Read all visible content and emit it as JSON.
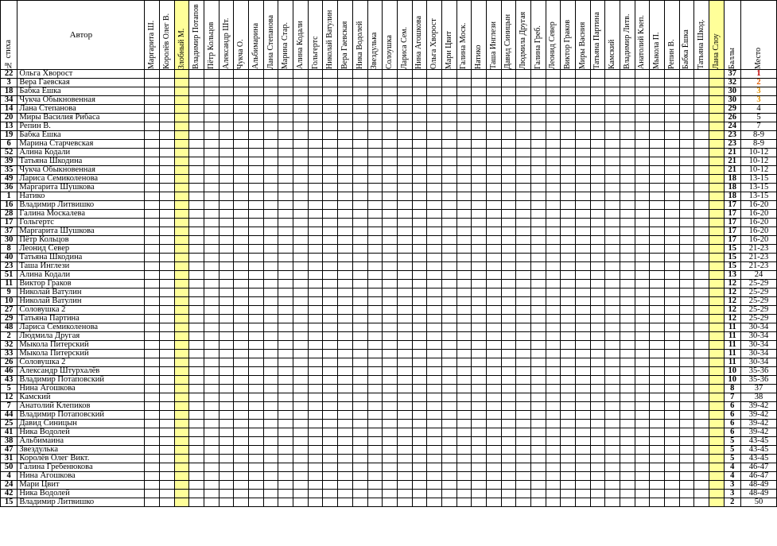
{
  "headers": {
    "num": "№ стиха",
    "author": "Автор",
    "score": "Баллы",
    "place": "Место",
    "judges": [
      "Маргарита Ш.",
      "Королёв Олег В.",
      "Злобный М.",
      "Владимир Потапов",
      "Пётр Кольцов",
      "Александр Шт.",
      "Чукча О.",
      "Альбимарина",
      "Лана Степанова",
      "Марина Стар.",
      "Алина Кодали",
      "Гольгертс",
      "Николай Ватулин",
      "Вера Гаевская",
      "Ника Водолей",
      "Звездулька",
      "Солоушка",
      "Лариса Сем.",
      "Нина Агошкова",
      "Ольга Хворост",
      "Мари Цвит",
      "Галина Моск.",
      "Натико",
      "Таша Инглези",
      "Давид Синицын",
      "Людмила Другая",
      "Галина Греб.",
      "Леонид Север",
      "Виктор Граков",
      "Миры Васния",
      "Татьяна Партина",
      "Камский",
      "Владимир Литв.",
      "Анатолий Клеп.",
      "Мыкола П.",
      "Репин В.",
      "Бабка Ёшка",
      "Татьяна Шкод.",
      "Лана Слоу"
    ]
  },
  "rows": [
    {
      "num": "22",
      "author": "Ольга Хворост",
      "score": "37",
      "place": "1"
    },
    {
      "num": "3",
      "author": "Вера Гаевская",
      "score": "32",
      "place": "2"
    },
    {
      "num": "18",
      "author": "Бабка Ёшка",
      "score": "30",
      "place": "3"
    },
    {
      "num": "34",
      "author": "Чукча Обыкновенная",
      "score": "30",
      "place": "3"
    },
    {
      "num": "14",
      "author": "Лана Степанова",
      "score": "29",
      "place": "4"
    },
    {
      "num": "20",
      "author": "Миры Василия Рибаса",
      "score": "26",
      "place": "5"
    },
    {
      "num": "13",
      "author": "Репин В.",
      "score": "24",
      "place": "7"
    },
    {
      "num": "19",
      "author": "Бабка Ёшка",
      "score": "23",
      "place": "8-9"
    },
    {
      "num": "6",
      "author": "Марина Старчевская",
      "score": "23",
      "place": "8-9"
    },
    {
      "num": "52",
      "author": "Алина Кодали",
      "score": "21",
      "place": "10-12"
    },
    {
      "num": "39",
      "author": "Татьяна Шкодина",
      "score": "21",
      "place": "10-12"
    },
    {
      "num": "35",
      "author": "Чукча Обыкновенная",
      "score": "21",
      "place": "10-12"
    },
    {
      "num": "49",
      "author": "Лариса Семиколенова",
      "score": "18",
      "place": "13-15"
    },
    {
      "num": "36",
      "author": "Маргарита Шушкова",
      "score": "18",
      "place": "13-15"
    },
    {
      "num": "1",
      "author": "Натико",
      "score": "18",
      "place": "13-15"
    },
    {
      "num": "16",
      "author": "Владимир Литвишко",
      "score": "17",
      "place": "16-20"
    },
    {
      "num": "28",
      "author": "Галина Москалева",
      "score": "17",
      "place": "16-20"
    },
    {
      "num": "17",
      "author": "Гольгертс",
      "score": "17",
      "place": "16-20"
    },
    {
      "num": "37",
      "author": "Маргарита Шушкова",
      "score": "17",
      "place": "16-20"
    },
    {
      "num": "30",
      "author": "Пётр Кольцов",
      "score": "17",
      "place": "16-20"
    },
    {
      "num": "8",
      "author": "Леонид Север",
      "score": "15",
      "place": "21-23"
    },
    {
      "num": "40",
      "author": "Татьяна Шкодина",
      "score": "15",
      "place": "21-23"
    },
    {
      "num": "23",
      "author": "Таша Инглези",
      "score": "15",
      "place": "21-23"
    },
    {
      "num": "51",
      "author": "Алина Кодали",
      "score": "13",
      "place": "24"
    },
    {
      "num": "11",
      "author": "Виктор Граков",
      "score": "12",
      "place": "25-29"
    },
    {
      "num": "9",
      "author": "Николай Ватулин",
      "score": "12",
      "place": "25-29"
    },
    {
      "num": "10",
      "author": "Николай Ватулин",
      "score": "12",
      "place": "25-29"
    },
    {
      "num": "27",
      "author": "Соловушка 2",
      "score": "12",
      "place": "25-29"
    },
    {
      "num": "29",
      "author": "Татьяна Партина",
      "score": "12",
      "place": "25-29"
    },
    {
      "num": "48",
      "author": "Лариса Семиколенова",
      "score": "11",
      "place": "30-34"
    },
    {
      "num": "2",
      "author": "Людмила Другая",
      "score": "11",
      "place": "30-34"
    },
    {
      "num": "32",
      "author": "Мыкола Питерский",
      "score": "11",
      "place": "30-34"
    },
    {
      "num": "33",
      "author": "Мыкола Питерский",
      "score": "11",
      "place": "30-34"
    },
    {
      "num": "26",
      "author": "Соловушка 2",
      "score": "11",
      "place": "30-34"
    },
    {
      "num": "46",
      "author": "Александр Штурхалёв",
      "score": "10",
      "place": "35-36"
    },
    {
      "num": "43",
      "author": "Владимир Потаповский",
      "score": "10",
      "place": "35-36"
    },
    {
      "num": "5",
      "author": "Нина Агошкова",
      "score": "8",
      "place": "37"
    },
    {
      "num": "12",
      "author": "Камский",
      "score": "7",
      "place": "38"
    },
    {
      "num": "7",
      "author": "Анатолий Клепиков",
      "score": "6",
      "place": "39-42"
    },
    {
      "num": "44",
      "author": "Владимир Потаповский",
      "score": "6",
      "place": "39-42"
    },
    {
      "num": "25",
      "author": "Давид Синицын",
      "score": "6",
      "place": "39-42"
    },
    {
      "num": "41",
      "author": "Ника Водолей",
      "score": "6",
      "place": "39-42"
    },
    {
      "num": "38",
      "author": "Альбимаина",
      "score": "5",
      "place": "43-45"
    },
    {
      "num": "47",
      "author": "Звездулька",
      "score": "5",
      "place": "43-45"
    },
    {
      "num": "31",
      "author": "Королёв Олег Викт.",
      "score": "5",
      "place": "43-45"
    },
    {
      "num": "50",
      "author": "Галина Гребенюкова",
      "score": "4",
      "place": "46-47"
    },
    {
      "num": "4",
      "author": "Нина Агошкова",
      "score": "4",
      "place": "46-47"
    },
    {
      "num": "24",
      "author": "Мари Цвит",
      "score": "3",
      "place": "48-49"
    },
    {
      "num": "42",
      "author": "Ника Водолей",
      "score": "3",
      "place": "48-49"
    },
    {
      "num": "15",
      "author": "Владимир Литвишко",
      "score": "2",
      "place": "50"
    }
  ]
}
